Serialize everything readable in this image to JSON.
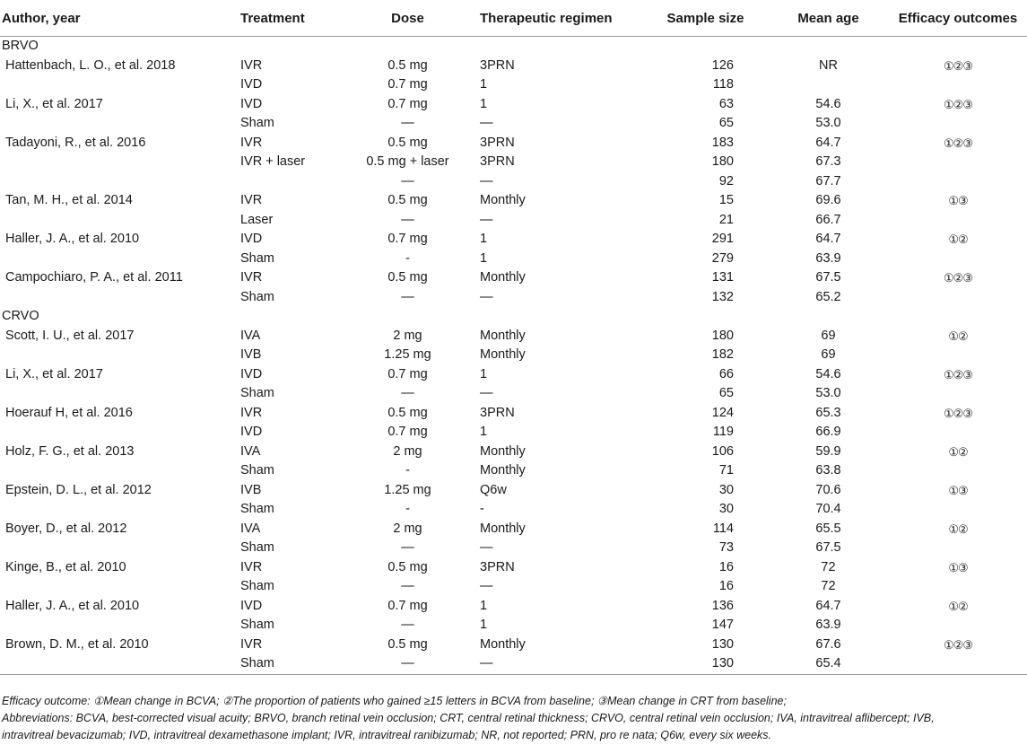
{
  "headers": [
    "Author, year",
    "Treatment",
    "Dose",
    "Therapeutic regimen",
    "Sample size",
    "Mean age",
    "Efficacy outcomes"
  ],
  "groups": [
    {
      "label": "BRVO",
      "rows": [
        [
          "Hattenbach, L. O., et al. 2018",
          "IVR",
          "0.5 mg",
          "3PRN",
          "126",
          "NR",
          "①②③"
        ],
        [
          "",
          "IVD",
          "0.7 mg",
          "1",
          "118",
          "",
          ""
        ],
        [
          "Li, X., et al. 2017",
          "IVD",
          "0.7 mg",
          "1",
          "63",
          "54.6",
          "①②③"
        ],
        [
          "",
          "Sham",
          "—",
          "—",
          "65",
          "53.0",
          ""
        ],
        [
          "Tadayoni, R., et al. 2016",
          "IVR",
          "0.5 mg",
          "3PRN",
          "183",
          "64.7",
          "①②③"
        ],
        [
          "",
          "IVR + laser",
          "0.5 mg + laser",
          "3PRN",
          "180",
          "67.3",
          ""
        ],
        [
          "",
          "",
          "—",
          "—",
          "92",
          "67.7",
          ""
        ],
        [
          "Tan, M. H., et al. 2014",
          "IVR",
          "0.5 mg",
          "Monthly",
          "15",
          "69.6",
          "①③"
        ],
        [
          "",
          "Laser",
          "—",
          "—",
          "21",
          "66.7",
          ""
        ],
        [
          "Haller, J. A., et al. 2010",
          "IVD",
          "0.7 mg",
          "1",
          "291",
          "64.7",
          "①②"
        ],
        [
          "",
          "Sham",
          "-",
          "1",
          "279",
          "63.9",
          ""
        ],
        [
          "Campochiaro, P. A., et al. 2011",
          "IVR",
          "0.5 mg",
          "Monthly",
          "131",
          "67.5",
          "①②③"
        ],
        [
          "",
          "Sham",
          "—",
          "—",
          "132",
          "65.2",
          ""
        ]
      ]
    },
    {
      "label": "CRVO",
      "rows": [
        [
          "Scott, I. U., et al. 2017",
          "IVA",
          "2 mg",
          "Monthly",
          "180",
          "69",
          "①②"
        ],
        [
          "",
          "IVB",
          "1.25 mg",
          "Monthly",
          "182",
          "69",
          ""
        ],
        [
          "Li, X., et al. 2017",
          "IVD",
          "0.7 mg",
          "1",
          "66",
          "54.6",
          "①②③"
        ],
        [
          "",
          "Sham",
          "—",
          "—",
          "65",
          "53.0",
          ""
        ],
        [
          "Hoerauf H, et al. 2016",
          "IVR",
          "0.5 mg",
          "3PRN",
          "124",
          "65.3",
          "①②③"
        ],
        [
          "",
          "IVD",
          "0.7 mg",
          "1",
          "119",
          "66.9",
          ""
        ],
        [
          "Holz, F. G., et al. 2013",
          "IVA",
          "2 mg",
          "Monthly",
          "106",
          "59.9",
          "①②"
        ],
        [
          "",
          "Sham",
          "-",
          "Monthly",
          "71",
          "63.8",
          ""
        ],
        [
          "Epstein, D. L., et al. 2012",
          "IVB",
          "1.25 mg",
          "Q6w",
          "30",
          "70.6",
          "①③"
        ],
        [
          "",
          "Sham",
          "-",
          "-",
          "30",
          "70.4",
          ""
        ],
        [
          "Boyer, D., et al. 2012",
          "IVA",
          "2 mg",
          "Monthly",
          "114",
          "65.5",
          "①②"
        ],
        [
          "",
          "Sham",
          "—",
          "—",
          "73",
          "67.5",
          ""
        ],
        [
          "Kinge, B., et al. 2010",
          "IVR",
          "0.5 mg",
          "3PRN",
          "16",
          "72",
          "①③"
        ],
        [
          "",
          "Sham",
          "—",
          "—",
          "16",
          "72",
          ""
        ],
        [
          "Haller, J. A., et al. 2010",
          "IVD",
          "0.7 mg",
          "1",
          "136",
          "64.7",
          "①②"
        ],
        [
          "",
          "Sham",
          "—",
          "1",
          "147",
          "63.9",
          ""
        ],
        [
          "Brown, D. M., et al. 2010",
          "IVR",
          "0.5 mg",
          "Monthly",
          "130",
          "67.6",
          "①②③"
        ],
        [
          "",
          "Sham",
          "—",
          "—",
          "130",
          "65.4",
          ""
        ]
      ]
    }
  ],
  "footnote": {
    "line1": "Efficacy outcome: ①Mean change in BCVA; ②The proportion of patients who gained ≥15 letters in BCVA from baseline; ③Mean change in CRT from baseline;",
    "line2": "Abbreviations: BCVA, best-corrected visual acuity; BRVO, branch retinal vein occlusion; CRT, central retinal thickness; CRVO, central retinal vein occlusion; IVA, intravitreal aflibercept; IVB,",
    "line3": "intravitreal bevacizumab; IVD, intravitreal dexamethasone implant; IVR, intravitreal ranibizumab; NR, not reported; PRN, pro re nata; Q6w, every six weeks."
  }
}
